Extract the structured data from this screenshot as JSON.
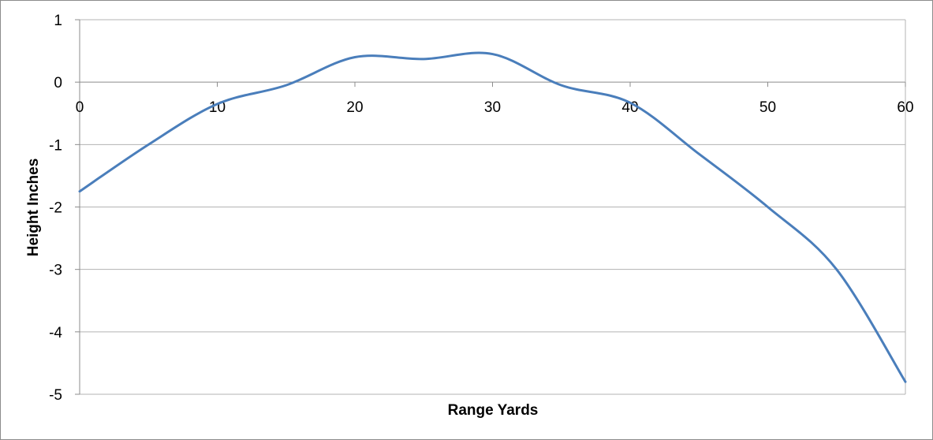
{
  "chart_data": {
    "type": "line",
    "title": "",
    "xlabel": "Range Yards",
    "ylabel": "Height Inches",
    "xlim": [
      0,
      60
    ],
    "ylim": [
      -5,
      1
    ],
    "x_ticks": [
      "0",
      "10",
      "20",
      "30",
      "40",
      "50",
      "60"
    ],
    "y_ticks": [
      "1",
      "0",
      "-1",
      "-2",
      "-3",
      "-4",
      "-5"
    ],
    "grid": true,
    "legend": "none",
    "series": [
      {
        "color": "#4a7ebb",
        "x": [
          0,
          5,
          10,
          15,
          20,
          25,
          30,
          35,
          40,
          45,
          50,
          55,
          60
        ],
        "y": [
          -1.75,
          -1.0,
          -0.35,
          -0.05,
          0.4,
          0.37,
          0.45,
          -0.05,
          -0.33,
          -1.15,
          -2.0,
          -3.0,
          -4.8
        ]
      }
    ]
  }
}
